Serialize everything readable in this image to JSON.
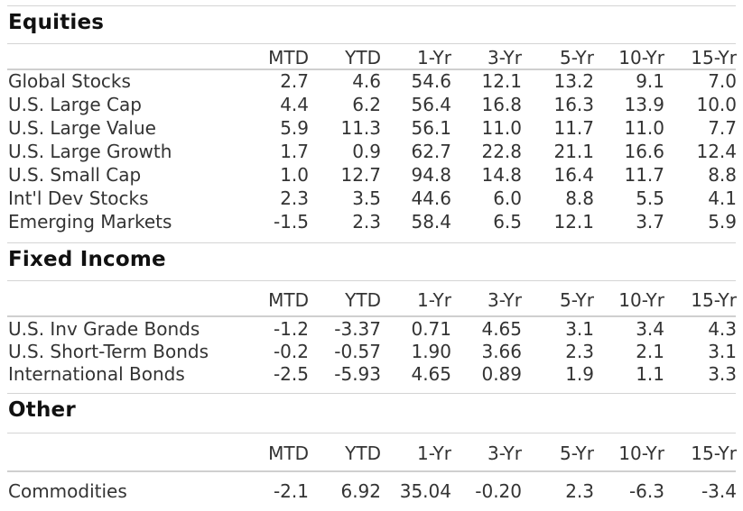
{
  "columns": [
    "MTD",
    "YTD",
    "1-Yr",
    "3-Yr",
    "5-Yr",
    "10-Yr",
    "15-Yr"
  ],
  "sections": [
    {
      "title": "Equities",
      "rows": [
        {
          "label": "Global Stocks",
          "values": [
            "2.7",
            "4.6",
            "54.6",
            "12.1",
            "13.2",
            "9.1",
            "7.0"
          ]
        },
        {
          "label": "U.S. Large Cap",
          "values": [
            "4.4",
            "6.2",
            "56.4",
            "16.8",
            "16.3",
            "13.9",
            "10.0"
          ]
        },
        {
          "label": "U.S. Large Value",
          "values": [
            "5.9",
            "11.3",
            "56.1",
            "11.0",
            "11.7",
            "11.0",
            "7.7"
          ]
        },
        {
          "label": "U.S. Large Growth",
          "values": [
            "1.7",
            "0.9",
            "62.7",
            "22.8",
            "21.1",
            "16.6",
            "12.4"
          ]
        },
        {
          "label": "U.S. Small Cap",
          "values": [
            "1.0",
            "12.7",
            "94.8",
            "14.8",
            "16.4",
            "11.7",
            "8.8"
          ]
        },
        {
          "label": "Int'l Dev Stocks",
          "values": [
            "2.3",
            "3.5",
            "44.6",
            "6.0",
            "8.8",
            "5.5",
            "4.1"
          ]
        },
        {
          "label": "Emerging Markets",
          "values": [
            "-1.5",
            "2.3",
            "58.4",
            "6.5",
            "12.1",
            "3.7",
            "5.9"
          ]
        }
      ]
    },
    {
      "title": "Fixed Income",
      "rows": [
        {
          "label": "U.S. Inv Grade Bonds",
          "values": [
            "-1.2",
            "-3.37",
            "0.71",
            "4.65",
            "3.1",
            "3.4",
            "4.3"
          ]
        },
        {
          "label": "U.S. Short-Term Bonds",
          "values": [
            "-0.2",
            "-0.57",
            "1.90",
            "3.66",
            "2.3",
            "2.1",
            "3.1"
          ]
        },
        {
          "label": "International Bonds",
          "values": [
            "-2.5",
            "-5.93",
            "4.65",
            "0.89",
            "1.9",
            "1.1",
            "3.3"
          ]
        }
      ]
    },
    {
      "title": "Other",
      "rows": [
        {
          "label": "Commodities",
          "values": [
            "-2.1",
            "6.92",
            "35.04",
            "-0.20",
            "2.3",
            "-6.3",
            "-3.4"
          ]
        }
      ]
    }
  ]
}
